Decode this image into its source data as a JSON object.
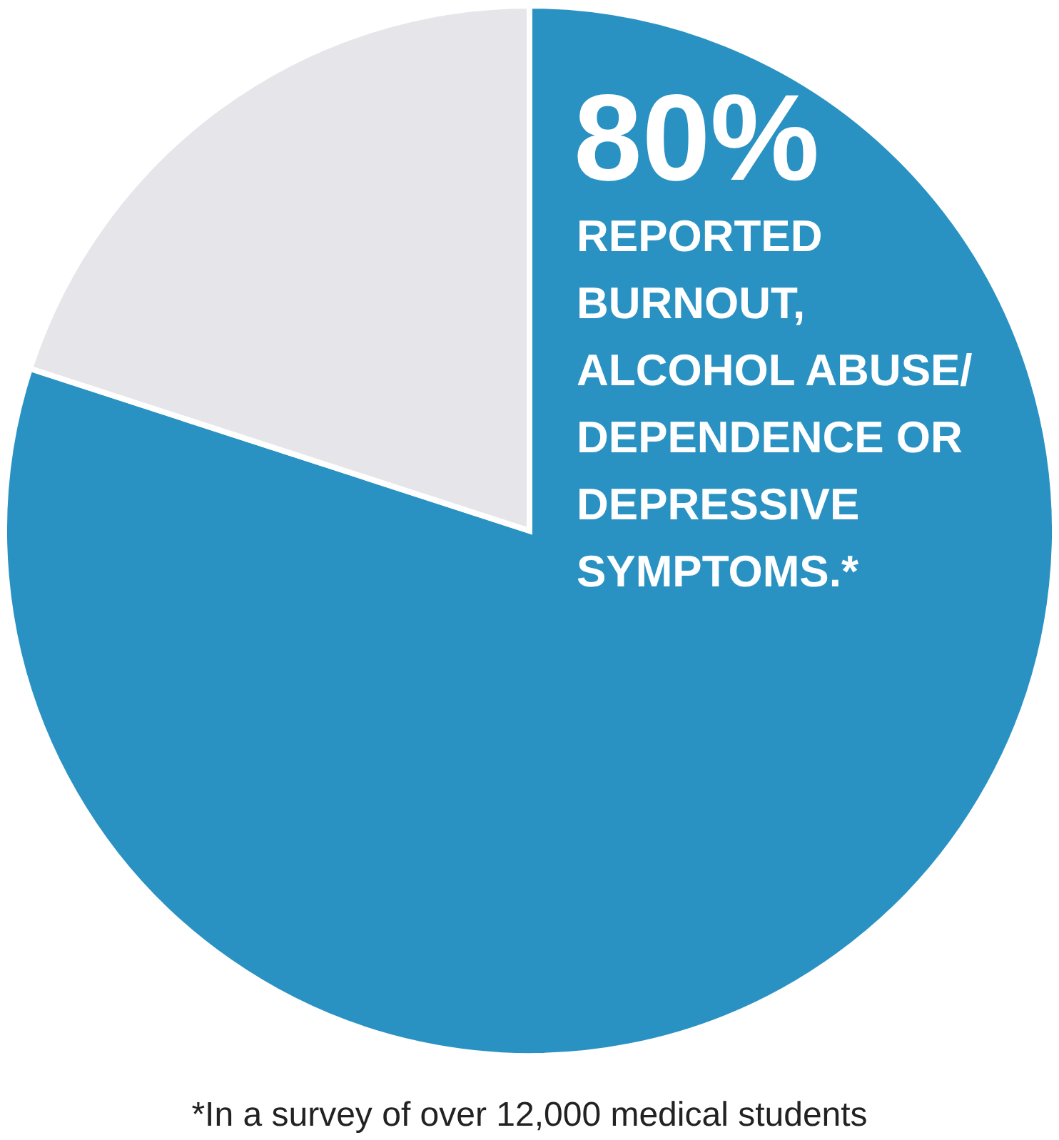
{
  "chart_data": {
    "type": "pie",
    "categories": [
      "REPORTED BURNOUT, ALCOHOL ABUSE/ DEPENDENCE OR DEPRESSIVE SYMPTOMS.*",
      null
    ],
    "values": [
      80,
      20
    ],
    "colors": [
      "#2a92c2",
      "#e6e6ea"
    ],
    "value_labels": [
      "80%",
      null
    ],
    "annotations": [
      "*In a survey of over 12,000 medical students"
    ]
  }
}
